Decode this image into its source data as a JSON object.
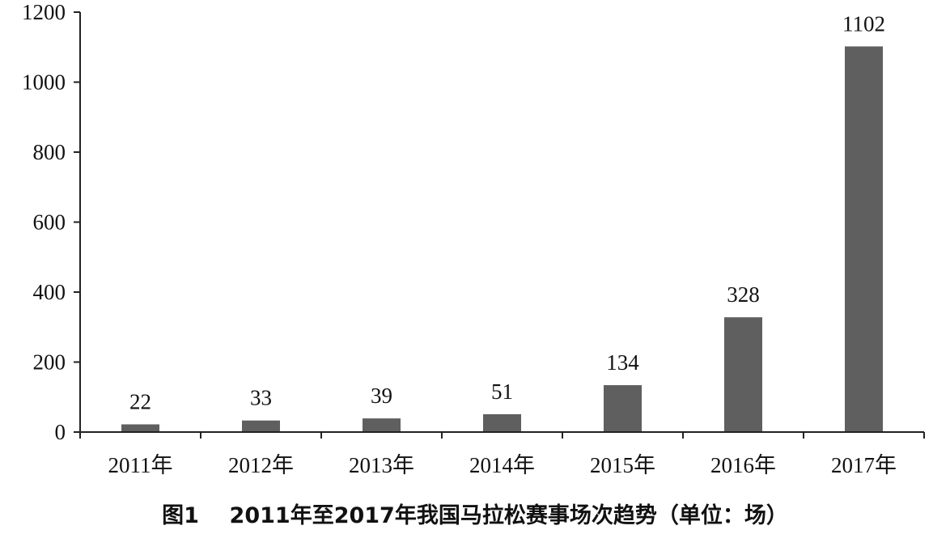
{
  "chart_data": {
    "type": "bar",
    "categories": [
      "2011年",
      "2012年",
      "2013年",
      "2014年",
      "2015年",
      "2016年",
      "2017年"
    ],
    "values": [
      22,
      33,
      39,
      51,
      134,
      328,
      1102
    ],
    "data_labels": [
      "22",
      "33",
      "39",
      "51",
      "134",
      "328",
      "1102"
    ],
    "y_ticks": [
      "0",
      "200",
      "400",
      "600",
      "800",
      "1000",
      "1200"
    ],
    "ylim": [
      0,
      1200
    ],
    "title": "",
    "xlabel": "",
    "ylabel": "",
    "grid": false,
    "legend": "none",
    "bar_color": "#5f5f5f",
    "axis_color": "#222222"
  },
  "caption": "图1    2011年至2017年我国马拉松赛事场次趋势（单位：场）"
}
